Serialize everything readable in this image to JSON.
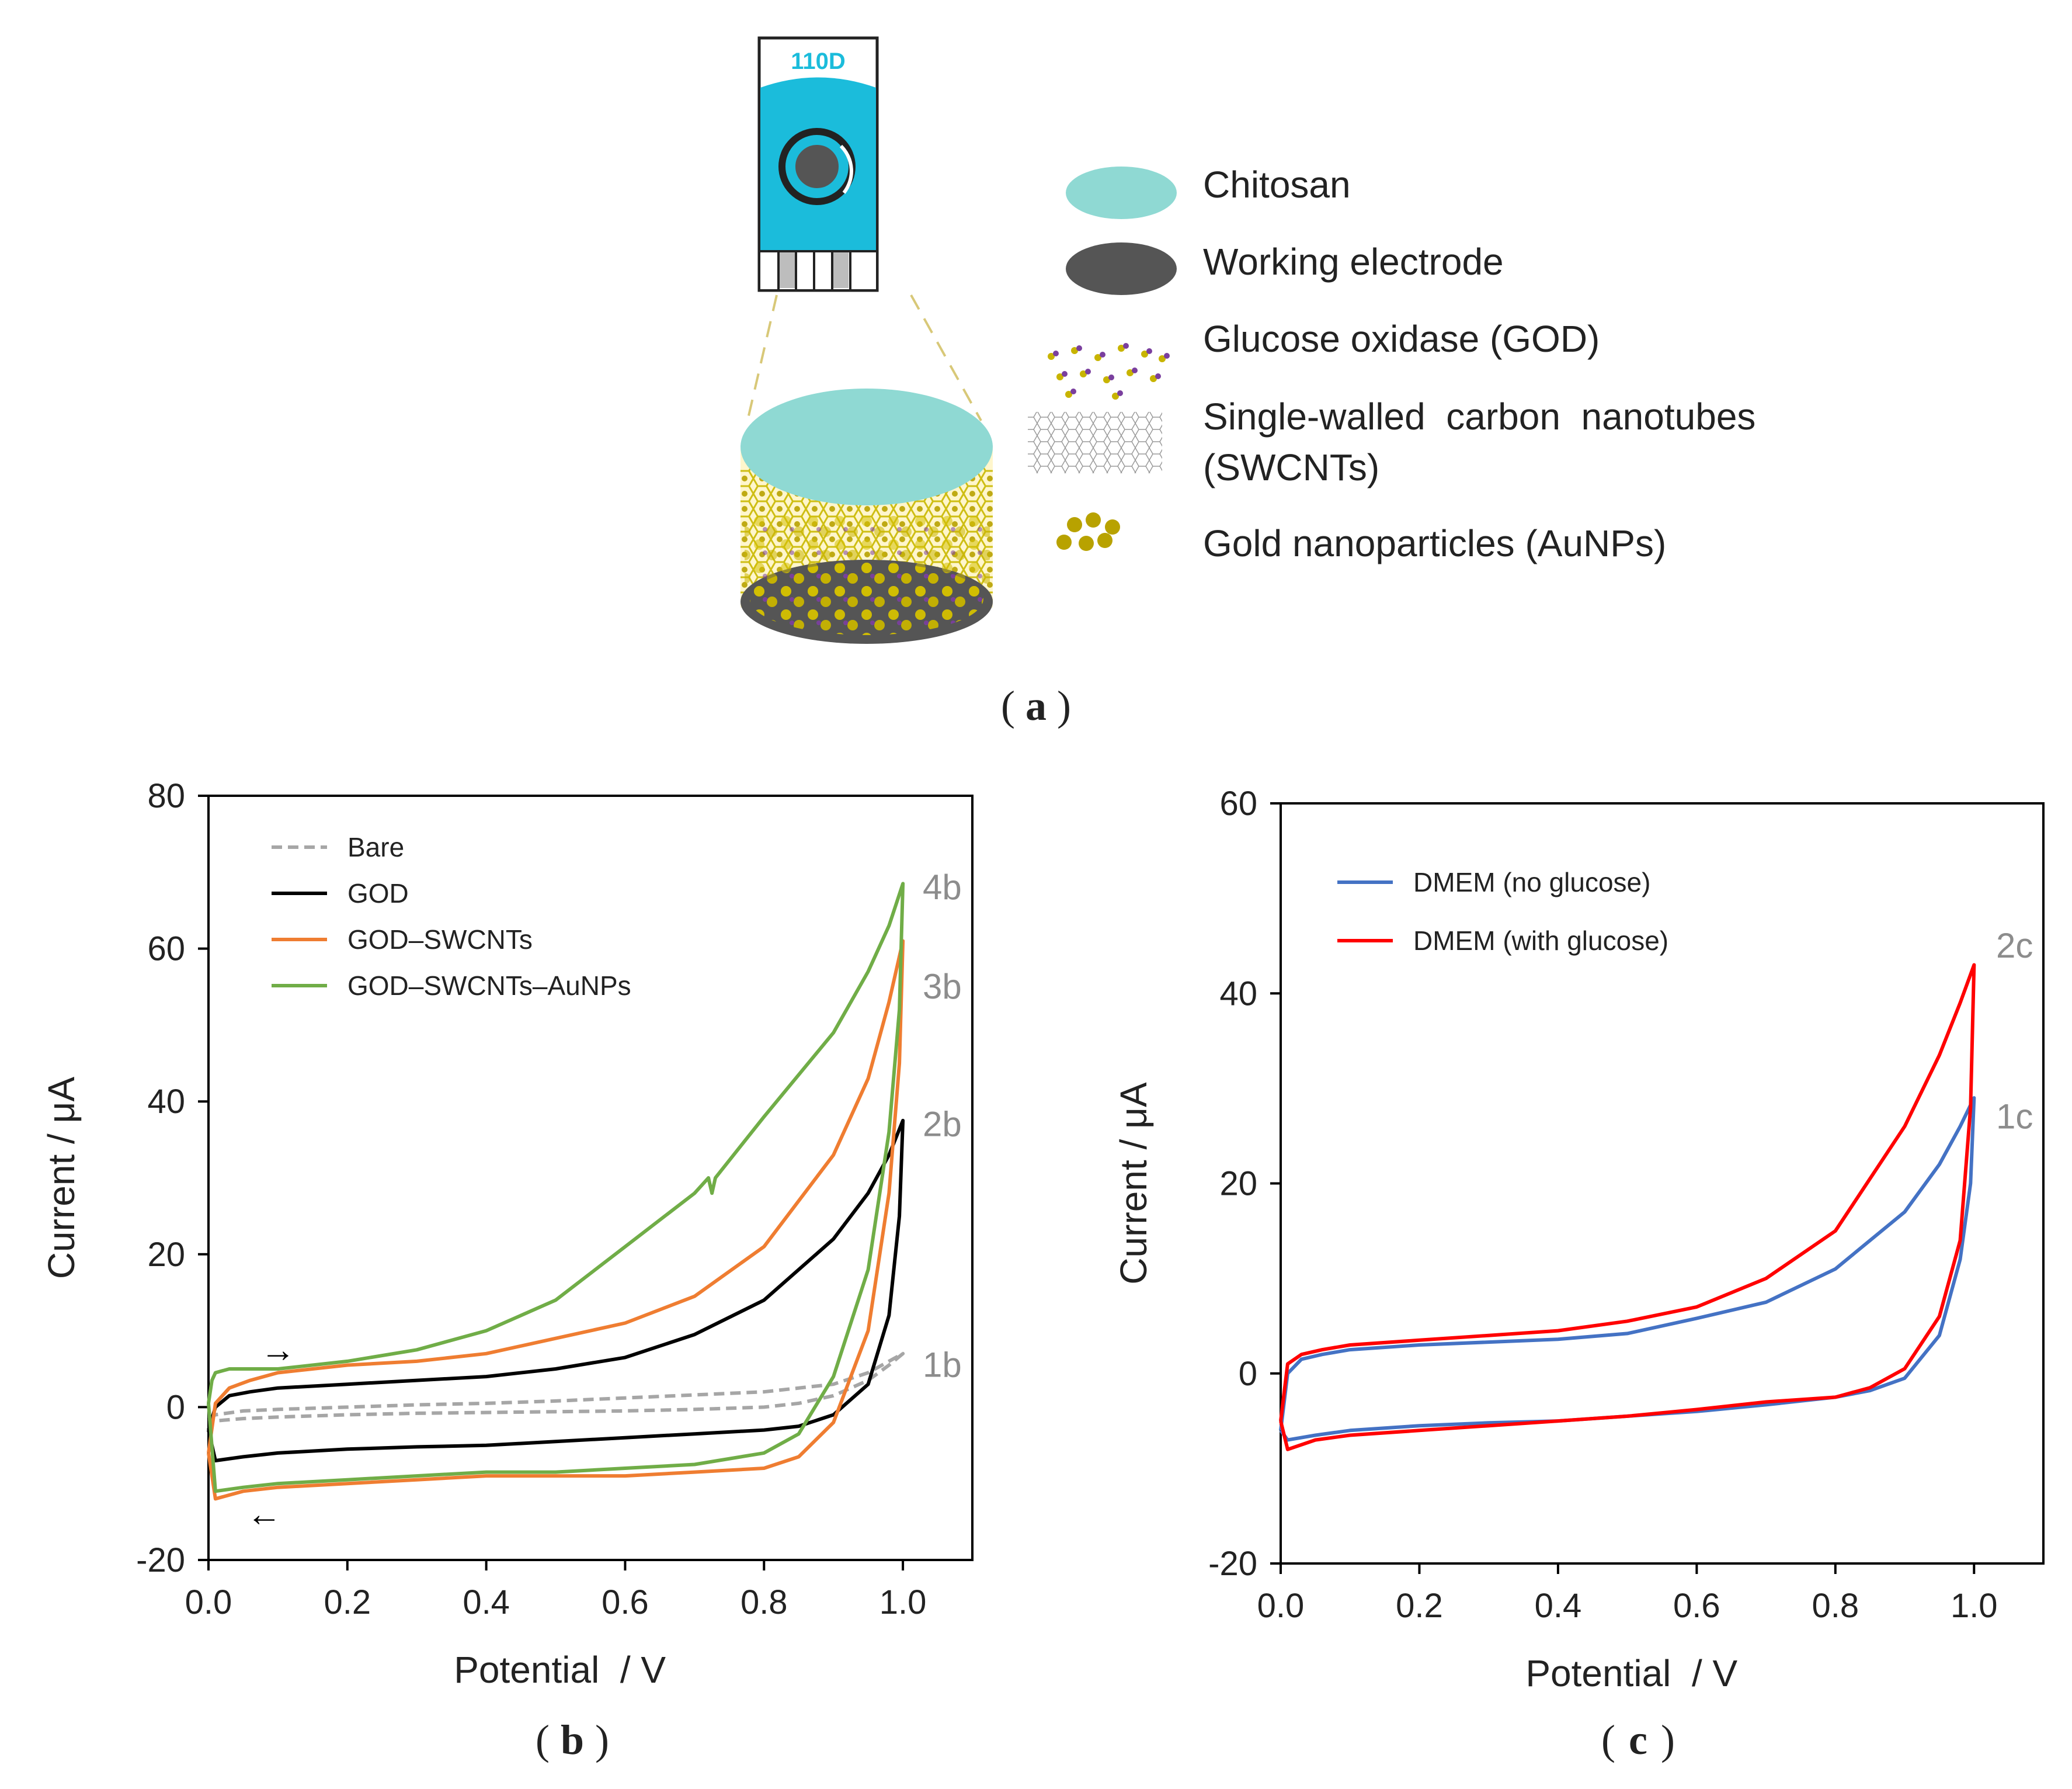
{
  "figure": {
    "panel_a": {
      "caption_paren_open": "(",
      "caption_letter": "a",
      "caption_paren_close": ")",
      "electrode_label": "110D",
      "legend": [
        {
          "label": "Chitosan"
        },
        {
          "label": "Working electrode"
        },
        {
          "label": "Glucose oxidase (GOD)"
        },
        {
          "label": "Single-walled  carbon  nanotubes"
        },
        {
          "label": "(SWCNTs)"
        },
        {
          "label": "Gold nanoparticles (AuNPs)"
        }
      ],
      "colors": {
        "electrode_blue": "#1bbcdb",
        "chitosan": "#8fd9d3",
        "working_electrode": "#555555",
        "gold": "#b8a200",
        "god_purple": "#7a3f9e"
      }
    },
    "panel_b": {
      "caption_paren_open": "(",
      "caption_letter": "b",
      "caption_paren_close": ")"
    },
    "panel_c": {
      "caption_paren_open": "(",
      "caption_letter": "c",
      "caption_paren_close": ")"
    }
  },
  "chart_data": [
    {
      "id": "b",
      "type": "line",
      "xlabel": "Potential  / V",
      "ylabel": "Current / μA",
      "xlim": [
        0.0,
        1.1
      ],
      "ylim": [
        -20,
        80
      ],
      "xticks": [
        0.0,
        0.2,
        0.4,
        0.6,
        0.8,
        1.0
      ],
      "xtick_labels": [
        "0.0",
        "0.2",
        "0.4",
        "0.6",
        "0.8",
        "1.0"
      ],
      "yticks": [
        -20,
        0,
        20,
        40,
        60,
        80
      ],
      "ytick_labels": [
        "-20",
        "0",
        "20",
        "40",
        "60",
        "80"
      ],
      "grid": false,
      "legend_position": "top-left",
      "series": [
        {
          "name": "Bare",
          "label": "1b",
          "color": "#a6a6a6",
          "dash": true,
          "x": [
            0.0,
            0.01,
            0.05,
            0.1,
            0.2,
            0.3,
            0.4,
            0.5,
            0.6,
            0.7,
            0.8,
            0.9,
            0.95,
            0.98,
            1.0,
            0.98,
            0.95,
            0.9,
            0.85,
            0.8,
            0.7,
            0.6,
            0.5,
            0.4,
            0.3,
            0.2,
            0.1,
            0.05,
            0.01,
            0.0
          ],
          "y": [
            -1.5,
            -1.0,
            -0.5,
            -0.3,
            0.0,
            0.3,
            0.5,
            0.8,
            1.2,
            1.6,
            2.0,
            3.0,
            4.5,
            6.0,
            7.0,
            5.5,
            3.5,
            1.5,
            0.5,
            0.0,
            -0.3,
            -0.5,
            -0.6,
            -0.7,
            -0.8,
            -1.0,
            -1.3,
            -1.5,
            -1.8,
            -1.5
          ]
        },
        {
          "name": "GOD",
          "label": "2b",
          "color": "#000000",
          "dash": false,
          "x": [
            0.0,
            0.01,
            0.03,
            0.06,
            0.1,
            0.2,
            0.3,
            0.4,
            0.5,
            0.6,
            0.7,
            0.8,
            0.9,
            0.95,
            0.98,
            1.0,
            0.995,
            0.98,
            0.95,
            0.9,
            0.85,
            0.8,
            0.7,
            0.6,
            0.5,
            0.4,
            0.3,
            0.2,
            0.1,
            0.05,
            0.01,
            0.0
          ],
          "y": [
            -3.0,
            0.0,
            1.5,
            2.0,
            2.5,
            3.0,
            3.5,
            4.0,
            5.0,
            6.5,
            9.5,
            14.0,
            22.0,
            28.0,
            33.0,
            37.5,
            25.0,
            12.0,
            3.0,
            -1.0,
            -2.5,
            -3.0,
            -3.5,
            -4.0,
            -4.5,
            -5.0,
            -5.2,
            -5.5,
            -6.0,
            -6.5,
            -7.0,
            -3.0
          ]
        },
        {
          "name": "GOD–SWCNTs",
          "label": "3b",
          "color": "#ef7d31",
          "dash": false,
          "x": [
            0.0,
            0.01,
            0.03,
            0.06,
            0.1,
            0.2,
            0.3,
            0.4,
            0.5,
            0.6,
            0.7,
            0.8,
            0.9,
            0.95,
            0.98,
            1.0,
            0.995,
            0.98,
            0.95,
            0.9,
            0.85,
            0.8,
            0.7,
            0.6,
            0.5,
            0.4,
            0.3,
            0.2,
            0.1,
            0.05,
            0.01,
            0.0
          ],
          "y": [
            -6.0,
            0.5,
            2.5,
            3.5,
            4.5,
            5.5,
            6.0,
            7.0,
            9.0,
            11.0,
            14.5,
            21.0,
            33.0,
            43.0,
            53.0,
            61.0,
            45.0,
            28.0,
            10.0,
            -2.0,
            -6.5,
            -8.0,
            -8.5,
            -9.0,
            -9.0,
            -9.0,
            -9.5,
            -10.0,
            -10.5,
            -11.0,
            -12.0,
            -6.0
          ]
        },
        {
          "name": "GOD–SWCNTs–AuNPs",
          "label": "4b",
          "color": "#70ad47",
          "dash": false,
          "x": [
            0.0,
            0.005,
            0.01,
            0.03,
            0.06,
            0.1,
            0.2,
            0.3,
            0.4,
            0.5,
            0.6,
            0.7,
            0.72,
            0.725,
            0.73,
            0.8,
            0.9,
            0.95,
            0.98,
            1.0,
            0.995,
            0.98,
            0.95,
            0.9,
            0.85,
            0.8,
            0.7,
            0.6,
            0.5,
            0.4,
            0.3,
            0.2,
            0.1,
            0.05,
            0.01,
            0.0
          ],
          "y": [
            0.5,
            3.5,
            4.5,
            5.0,
            5.0,
            5.0,
            6.0,
            7.5,
            10.0,
            14.0,
            21.0,
            28.0,
            30.0,
            28.0,
            30.0,
            38.0,
            49.0,
            57.0,
            63.0,
            68.5,
            52.0,
            36.0,
            18.0,
            4.0,
            -3.5,
            -6.0,
            -7.5,
            -8.0,
            -8.5,
            -8.5,
            -9.0,
            -9.5,
            -10.0,
            -10.5,
            -11.0,
            0.5
          ]
        }
      ],
      "annotations": [
        {
          "text": "4b",
          "x": 1.02,
          "y": 68
        },
        {
          "text": "3b",
          "x": 1.02,
          "y": 55
        },
        {
          "text": "2b",
          "x": 1.02,
          "y": 37
        },
        {
          "text": "1b",
          "x": 1.02,
          "y": 5.5
        },
        {
          "text": "→",
          "x": 0.1,
          "y": 7.5
        },
        {
          "text": "←",
          "x": 0.08,
          "y": -14
        }
      ]
    },
    {
      "id": "c",
      "type": "line",
      "xlabel": "Potential  / V",
      "ylabel": "Current / μA",
      "xlim": [
        0.0,
        1.1
      ],
      "ylim": [
        -20,
        60
      ],
      "xticks": [
        0.0,
        0.2,
        0.4,
        0.6,
        0.8,
        1.0
      ],
      "xtick_labels": [
        "0.0",
        "0.2",
        "0.4",
        "0.6",
        "0.8",
        "1.0"
      ],
      "yticks": [
        -20,
        0,
        20,
        40,
        60
      ],
      "ytick_labels": [
        "-20",
        "0",
        "20",
        "40",
        "60"
      ],
      "grid": false,
      "legend_position": "top-left",
      "series": [
        {
          "name": "DMEM (no glucose)",
          "label": "1c",
          "color": "#4472c4",
          "dash": false,
          "x": [
            0.0,
            0.01,
            0.03,
            0.06,
            0.1,
            0.2,
            0.3,
            0.4,
            0.5,
            0.6,
            0.7,
            0.8,
            0.9,
            0.95,
            0.98,
            1.0,
            0.995,
            0.98,
            0.95,
            0.9,
            0.85,
            0.8,
            0.7,
            0.6,
            0.5,
            0.4,
            0.3,
            0.2,
            0.1,
            0.05,
            0.01,
            0.0
          ],
          "y": [
            -6.0,
            0.0,
            1.5,
            2.0,
            2.5,
            3.0,
            3.3,
            3.6,
            4.2,
            5.8,
            7.5,
            11.0,
            17.0,
            22.0,
            26.0,
            29.0,
            20.0,
            12.0,
            4.0,
            -0.5,
            -1.8,
            -2.5,
            -3.3,
            -4.0,
            -4.5,
            -5.0,
            -5.2,
            -5.5,
            -6.0,
            -6.5,
            -7.0,
            -6.0
          ]
        },
        {
          "name": "DMEM (with glucose)",
          "label": "2c",
          "color": "#ff0000",
          "dash": false,
          "x": [
            0.0,
            0.01,
            0.03,
            0.06,
            0.1,
            0.2,
            0.3,
            0.4,
            0.5,
            0.6,
            0.7,
            0.8,
            0.9,
            0.95,
            0.98,
            1.0,
            0.995,
            0.98,
            0.95,
            0.9,
            0.85,
            0.8,
            0.7,
            0.6,
            0.5,
            0.4,
            0.3,
            0.2,
            0.1,
            0.05,
            0.01,
            0.0
          ],
          "y": [
            -5.0,
            1.0,
            2.0,
            2.5,
            3.0,
            3.5,
            4.0,
            4.5,
            5.5,
            7.0,
            10.0,
            15.0,
            26.0,
            33.5,
            39.0,
            43.0,
            28.0,
            14.0,
            6.0,
            0.5,
            -1.5,
            -2.5,
            -3.0,
            -3.8,
            -4.5,
            -5.0,
            -5.5,
            -6.0,
            -6.5,
            -7.0,
            -8.0,
            -5.0
          ]
        }
      ],
      "annotations": [
        {
          "text": "2c",
          "x": 1.02,
          "y": 45
        },
        {
          "text": "1c",
          "x": 1.02,
          "y": 27
        }
      ]
    }
  ]
}
